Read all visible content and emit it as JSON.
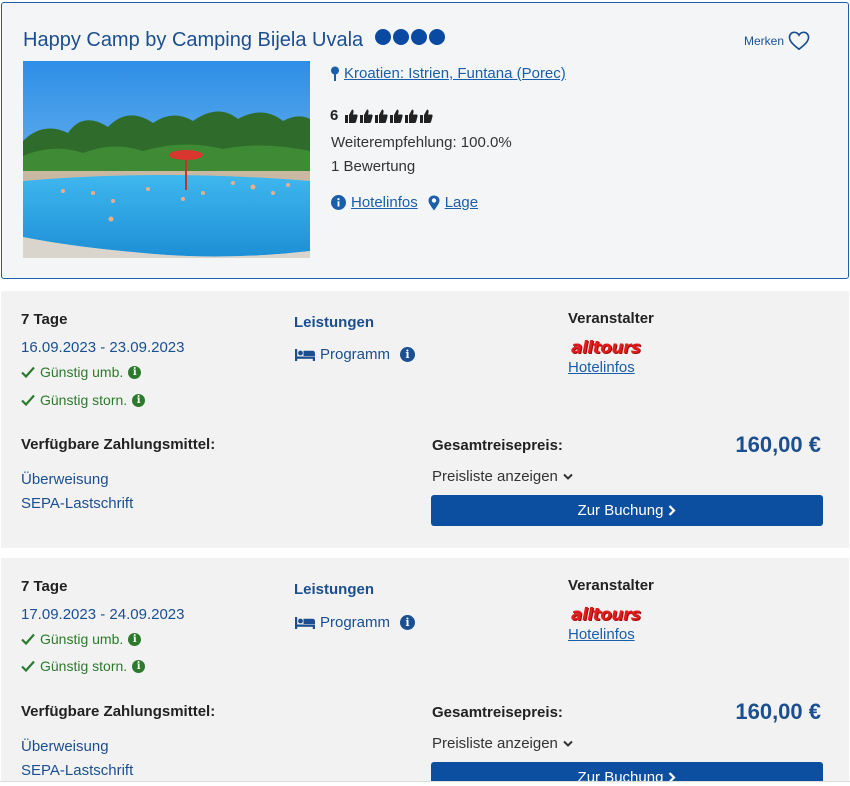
{
  "hotel": {
    "name": "Happy Camp by Camping Bijela Uvala",
    "stars": 4,
    "merken_label": "Merken",
    "location": "Kroatien: Istrien, Funtana (Porec)",
    "rating": "6",
    "thumbs": 6,
    "recommendation": "Weiterempfehlung: 100.0%",
    "reviews": "1 Bewertung",
    "links": {
      "hotelinfos": "Hotelinfos",
      "lage": "Lage"
    }
  },
  "offers": [
    {
      "days": "7 Tage",
      "dates": "16.09.2023 - 23.09.2023",
      "perk_rebook": "Günstig umb.",
      "perk_cancel": "Günstig storn.",
      "leistungen_label": "Leistungen",
      "programm_label": "Programm",
      "veranstalter_label": "Veranstalter",
      "veranstalter_logo": "alltours",
      "hotelinfos_label": "Hotelinfos",
      "zahlung_title": "Verfügbare Zahlungsmittel:",
      "payment_methods": [
        "Überweisung",
        "SEPA-Lastschrift"
      ],
      "gesamt_label": "Gesamtreisepreis:",
      "price": "160,00 €",
      "preisliste_label": "Preisliste anzeigen",
      "buchung_label": "Zur Buchung"
    },
    {
      "days": "7 Tage",
      "dates": "17.09.2023 - 24.09.2023",
      "perk_rebook": "Günstig umb.",
      "perk_cancel": "Günstig storn.",
      "leistungen_label": "Leistungen",
      "programm_label": "Programm",
      "veranstalter_label": "Veranstalter",
      "veranstalter_logo": "alltours",
      "hotelinfos_label": "Hotelinfos",
      "zahlung_title": "Verfügbare Zahlungsmittel:",
      "payment_methods": [
        "Überweisung",
        "SEPA-Lastschrift"
      ],
      "gesamt_label": "Gesamtreisepreis:",
      "price": "160,00 €",
      "preisliste_label": "Preisliste anzeigen",
      "buchung_label": "Zur Buchung"
    }
  ],
  "colors": {
    "brand_blue": "#1b4f8f",
    "button_blue": "#0c4ea0",
    "perk_green": "#2c7a2c",
    "logo_red": "#e21b1b"
  }
}
